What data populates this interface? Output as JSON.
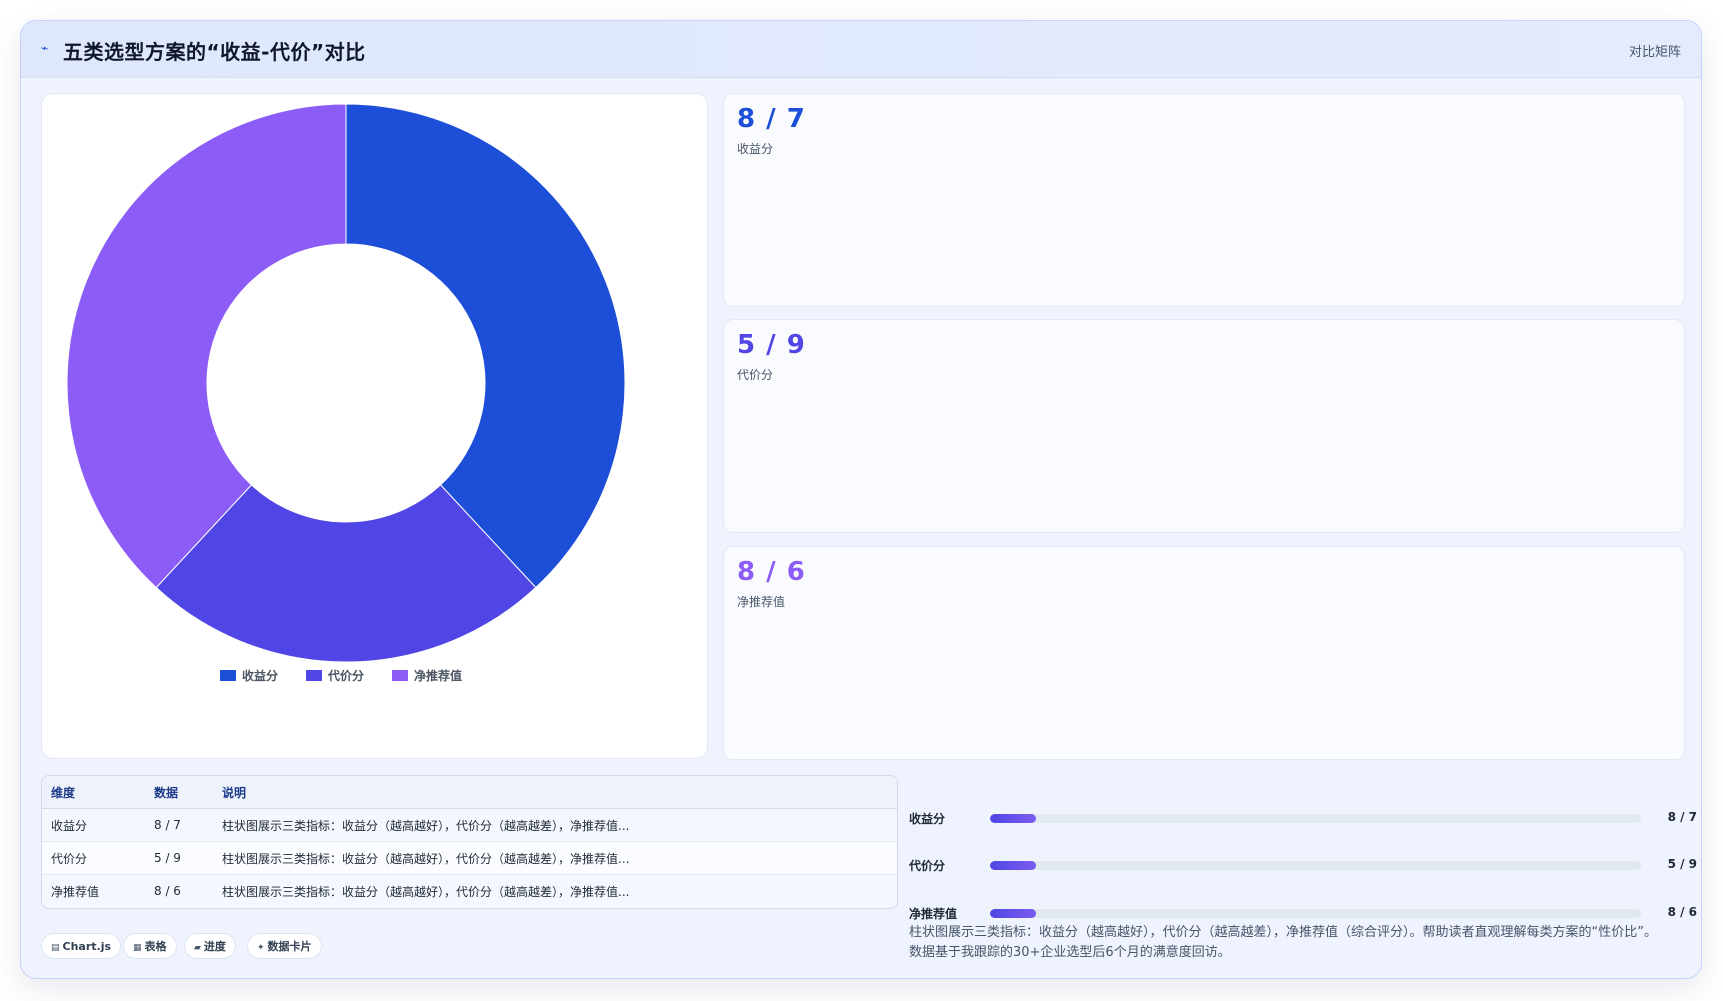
{
  "header": {
    "title": "五类选型方案的“收益-代价”对比",
    "tag": "对比矩阵"
  },
  "colors": {
    "series1": "#1d4ed8",
    "series2": "#4f46e5",
    "series3": "#8b5cf6"
  },
  "chart_data": {
    "type": "pie",
    "variant": "doughnut",
    "categories": [
      "收益分",
      "代价分",
      "净推荐值"
    ],
    "values": [
      8,
      5,
      8
    ],
    "colors": [
      "#1d4ed8",
      "#4f46e5",
      "#8b5cf6"
    ],
    "legend_position": "bottom"
  },
  "stats": [
    {
      "value": "8 / 7",
      "label": "收益分",
      "color": "#1d4ed8"
    },
    {
      "value": "5 / 9",
      "label": "代价分",
      "color": "#4f46e5"
    },
    {
      "value": "8 / 6",
      "label": "净推荐值",
      "color": "#8b5cf6"
    }
  ],
  "table": {
    "headers": [
      "维度",
      "数据",
      "说明"
    ],
    "rows": [
      [
        "收益分",
        "8 / 7",
        "柱状图展示三类指标：收益分（越高越好），代价分（越高越差），净推荐值..."
      ],
      [
        "代价分",
        "5 / 9",
        "柱状图展示三类指标：收益分（越高越好），代价分（越高越差），净推荐值..."
      ],
      [
        "净推荐值",
        "8 / 6",
        "柱状图展示三类指标：收益分（越高越好），代价分（越高越差），净推荐值..."
      ]
    ]
  },
  "progress": [
    {
      "label": "收益分",
      "value_text": "8 / 7",
      "fraction": 0.07
    },
    {
      "label": "代价分",
      "value_text": "5 / 9",
      "fraction": 0.07
    },
    {
      "label": "净推荐值",
      "value_text": "8 / 6",
      "fraction": 0.07
    }
  ],
  "footnote": {
    "line1": "柱状图展示三类指标：收益分（越高越好），代价分（越高越差），净推荐值（综合评分）。帮助读者直观理解每类方案的“性价比”。",
    "line2": "数据基于我跟踪的30+企业选型后6个月的满意度回访。"
  },
  "chips": [
    {
      "icon": "chart-icon",
      "glyph": "▤",
      "label": "Chart.js"
    },
    {
      "icon": "table-icon",
      "glyph": "▦",
      "label": "表格"
    },
    {
      "icon": "progress-icon",
      "glyph": "▰",
      "label": "进度"
    },
    {
      "icon": "card-icon",
      "glyph": "✦",
      "label": "数据卡片"
    }
  ]
}
